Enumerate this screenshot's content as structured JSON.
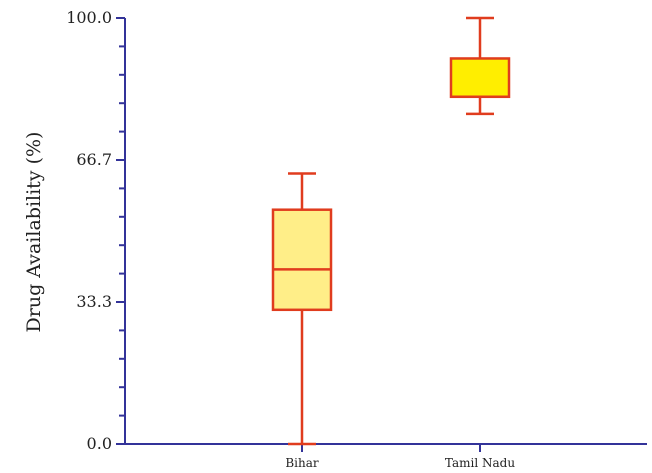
{
  "chart_data": {
    "type": "box",
    "title": "",
    "xlabel": "",
    "ylabel": "Drug Availability (%)",
    "ylim": [
      0,
      100
    ],
    "yticks": [
      "0.0",
      "33.3",
      "66.7",
      "100.0"
    ],
    "minor_ticks_per_interval": 4,
    "grid": false,
    "legend": "none",
    "categories": [
      "Bihar",
      "Tamil Nadu"
    ],
    "series": [
      {
        "category": "Bihar",
        "min": 0,
        "q1": 31.5,
        "median": 41,
        "q3": 55,
        "max": 63.5,
        "fill": "#FFEE88"
      },
      {
        "category": "Tamil Nadu",
        "min": 77.5,
        "q1": 81.5,
        "median": 81.5,
        "q3": 90.5,
        "max": 100,
        "fill": "#FFEE00"
      }
    ],
    "colors": {
      "axis": "#333399",
      "box_stroke": "#E03C1E"
    }
  }
}
